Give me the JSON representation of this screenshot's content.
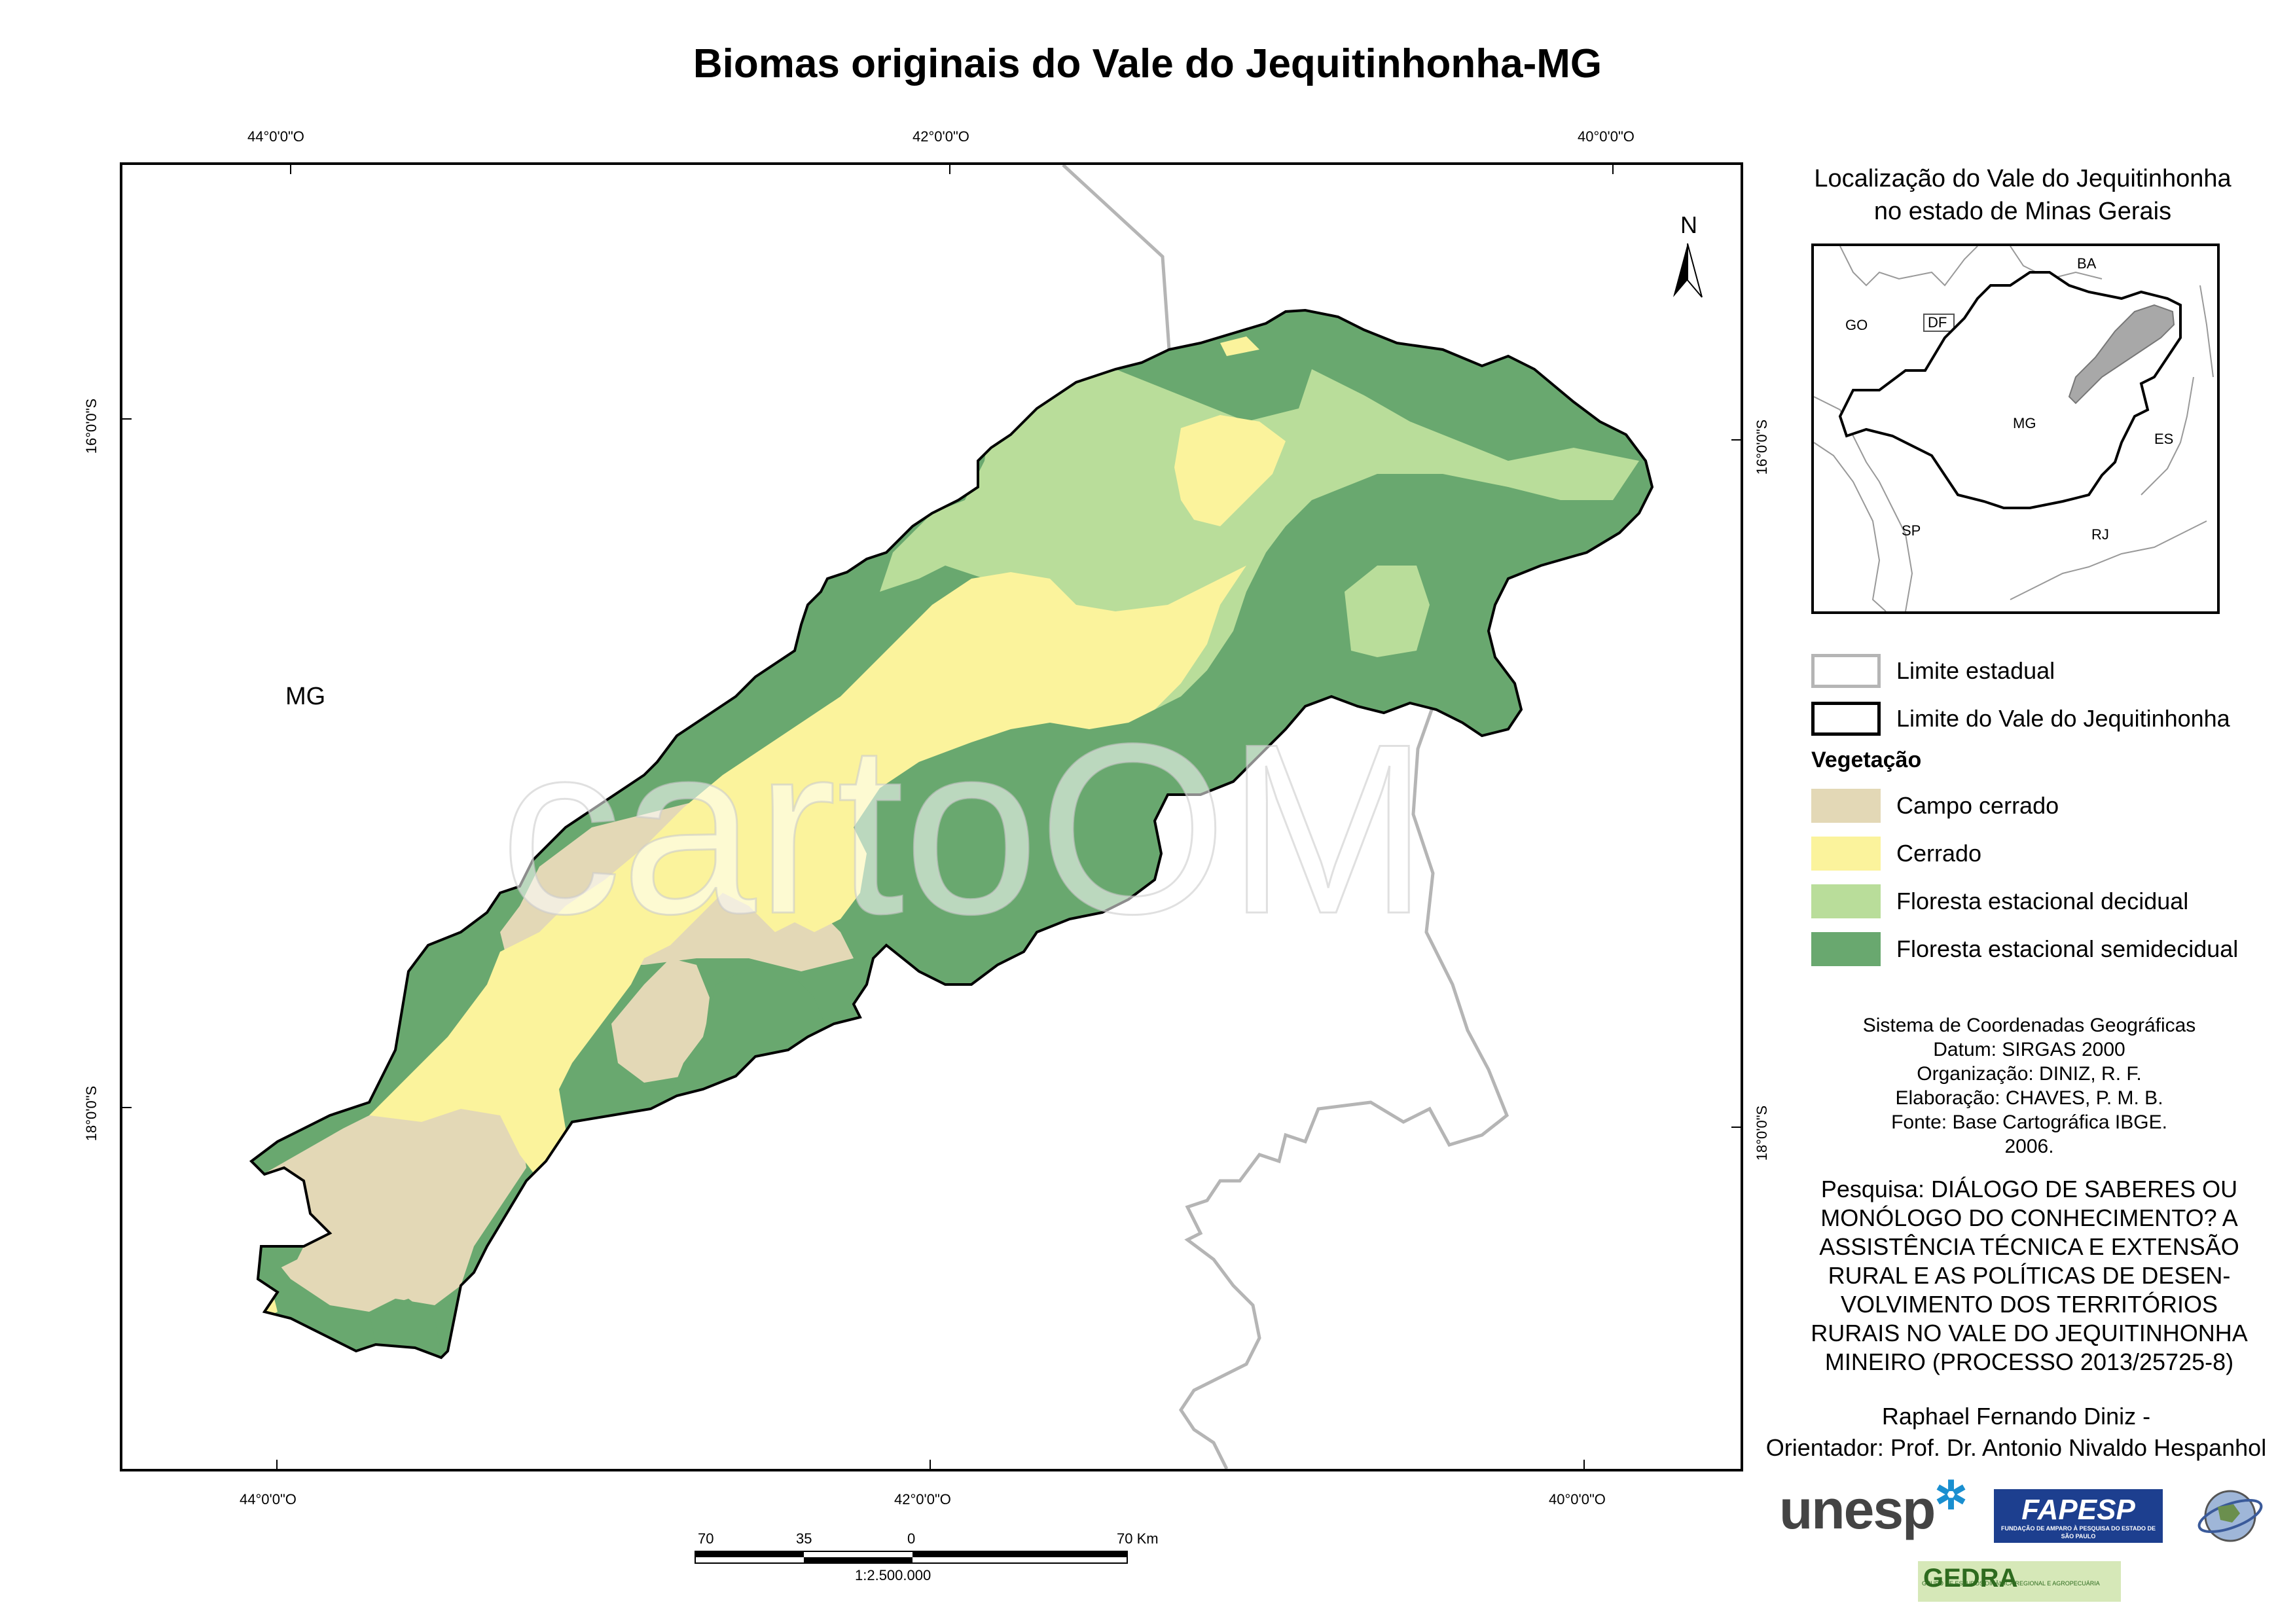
{
  "title": "Biomas originais do Vale do Jequitinhonha-MG",
  "graticule": {
    "top": [
      "44°0'0\"O",
      "42°0'0\"O",
      "40°0'0\"O"
    ],
    "bottom": [
      "44°0'0\"O",
      "42°0'0\"O",
      "40°0'0\"O"
    ],
    "left": [
      "16°0'0\"S",
      "18°0'0\"S"
    ],
    "right": [
      "16°0'0\"S",
      "18°0'0\"S"
    ]
  },
  "map": {
    "state_label": "MG",
    "north_label": "N",
    "watermark": "cartoOM"
  },
  "inset": {
    "title_line1": "Localização do Vale do Jequitinhonha",
    "title_line2": "no estado de Minas Gerais",
    "labels": {
      "ba": "BA",
      "go": "GO",
      "df": "DF",
      "mg": "MG",
      "es": "ES",
      "sp": "SP",
      "rj": "RJ"
    }
  },
  "legend": {
    "boundaries": [
      {
        "label": "Limite estadual",
        "color": "#b5b5b5"
      },
      {
        "label": "Limite do Vale do Jequitinhonha",
        "color": "#000000"
      }
    ],
    "heading": "Vegetação",
    "classes": [
      {
        "label": "Campo cerrado",
        "color": "#e3d8b6"
      },
      {
        "label": "Cerrado",
        "color": "#fbf39c"
      },
      {
        "label": "Floresta estacional decidual",
        "color": "#b9dd9a"
      },
      {
        "label": "Floresta estacional semidecidual",
        "color": "#69a86f"
      }
    ]
  },
  "credits": [
    "Sistema de Coordenadas Geográficas",
    "Datum: SIRGAS 2000",
    "Organização: DINIZ, R. F.",
    "Elaboração: CHAVES, P. M. B.",
    "Fonte: Base Cartográfica IBGE.",
    "2006."
  ],
  "research": [
    "Pesquisa: DIÁLOGO DE SABERES OU",
    "MONÓLOGO DO CONHECIMENTO? A",
    "ASSISTÊNCIA TÉCNICA E EXTENSÃO",
    "RURAL E AS POLÍTICAS DE DESEN-",
    "VOLVIMENTO DOS TERRITÓRIOS",
    "RURAIS NO VALE DO JEQUITINHONHA",
    "MINEIRO (PROCESSO 2013/25725-8)"
  ],
  "authors": [
    "Raphael Fernando Diniz -",
    "Orientador: Prof. Dr. Antonio Nivaldo Hespanhol"
  ],
  "scale": {
    "ticks": [
      "70",
      "35",
      "0",
      "70 Km"
    ],
    "ratio": "1:2.500.000"
  },
  "logos": {
    "unesp": "unesp",
    "fapesp": "FAPESP",
    "fapesp_sub": "FUNDAÇÃO DE AMPARO À PESQUISA DO ESTADO DE SÃO PAULO",
    "gedra": "GEDRA",
    "gedra_sub": "GRUPO DE ESTUDOS DINÂMICA REGIONAL E AGROPECUÁRIA"
  }
}
